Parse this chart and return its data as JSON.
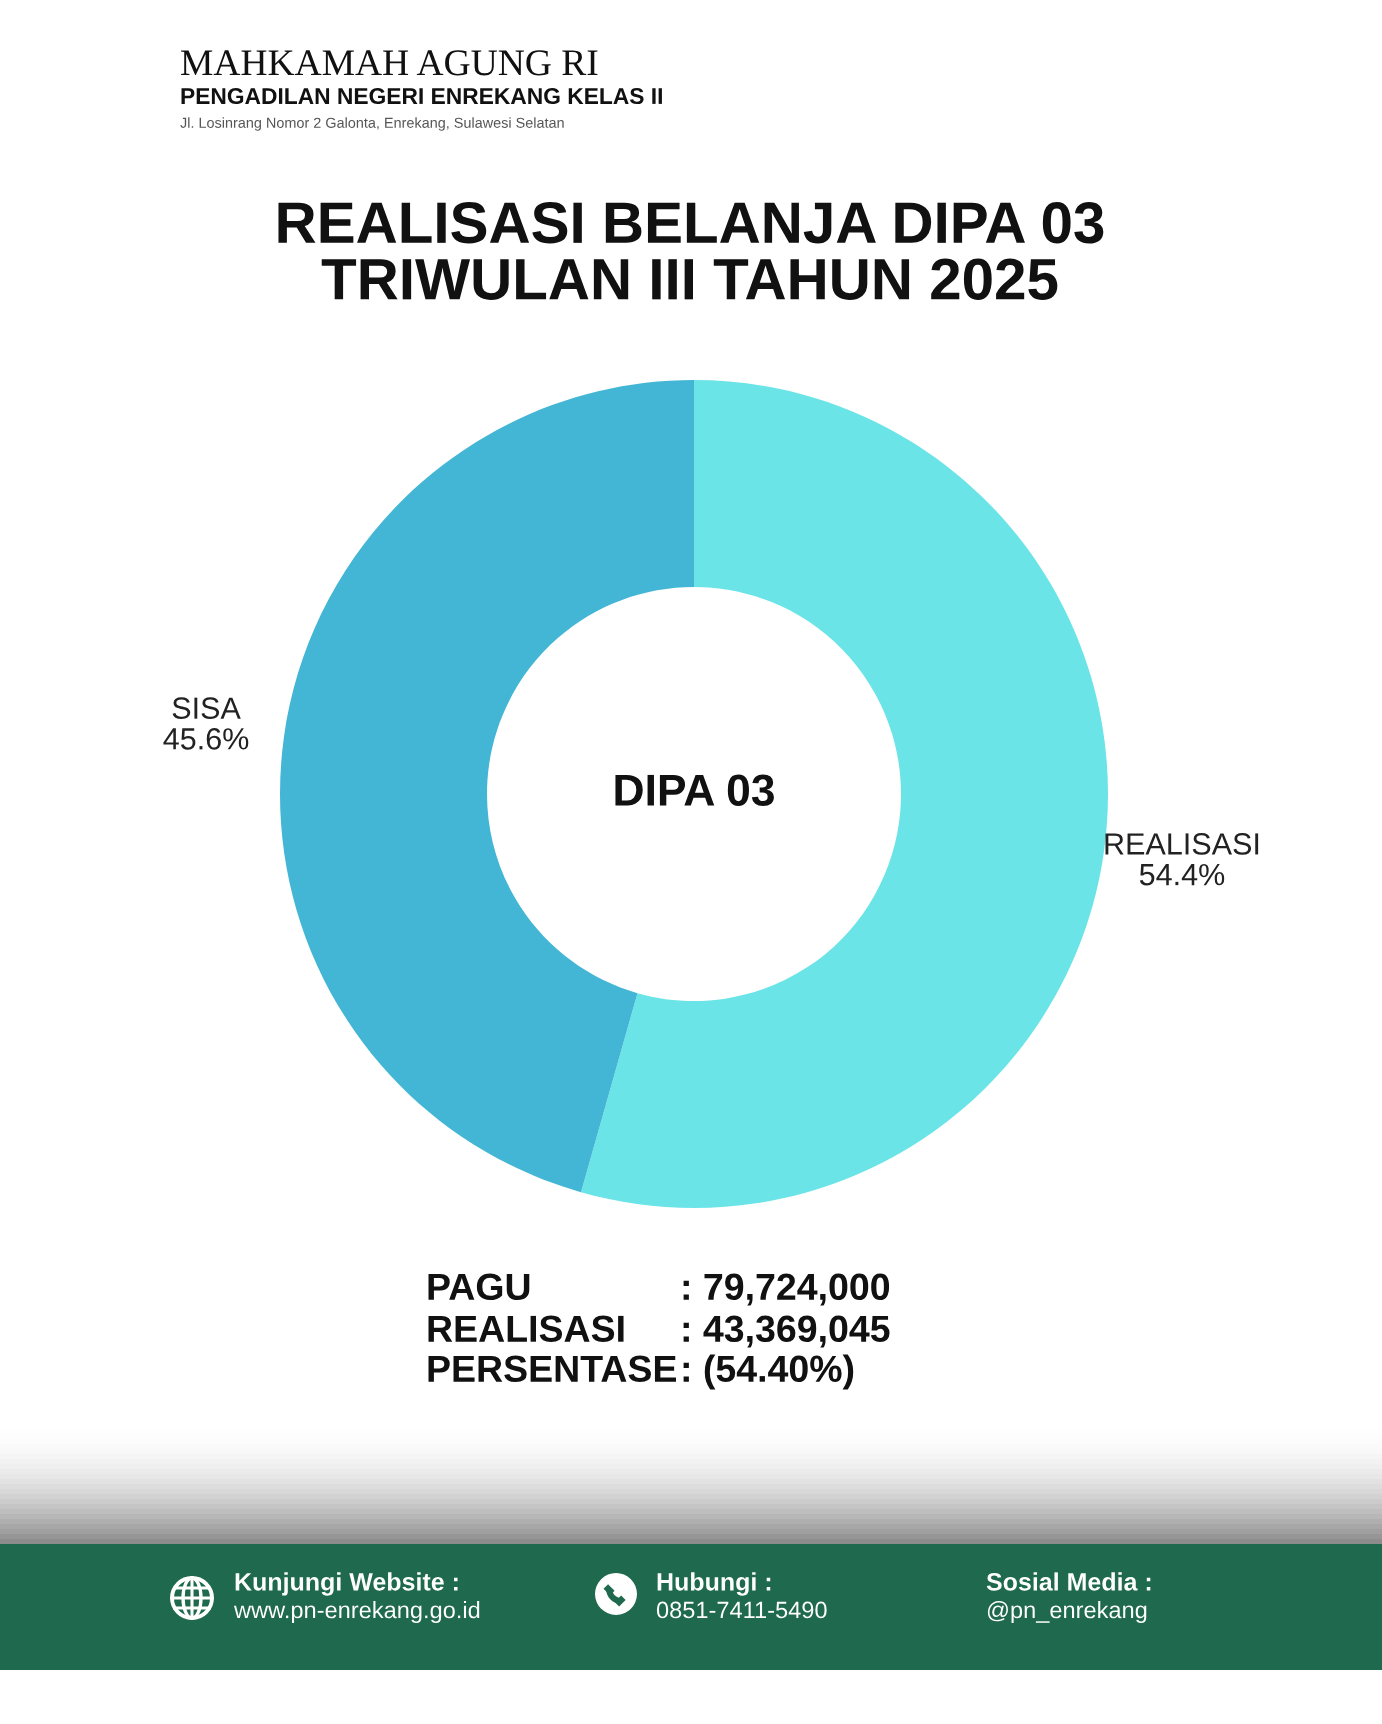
{
  "chart_data": {
    "type": "donut",
    "title": "REALISASI BELANJA DIPA 03\nTRIWULAN III TAHUN 2025",
    "categories": [
      "REALISASI",
      "SISA"
    ],
    "values": [
      54.4,
      45.6
    ],
    "colors": [
      "#6be4e8",
      "#43b6d5"
    ],
    "value_labels": [
      "54.4%",
      "45.6%"
    ],
    "annotations": [
      "MAHKAMAH AGUNG RI",
      "PENGADILAN NEGERI ENREKANG KELAS II",
      "Jl. Losinrang Nomor 2 Galonta, Enrekang, Sulawesi Selatan",
      "DIPA 03",
      "PAGU",
      ": 79,724,000",
      "REALISASI",
      ": 43,369,045",
      "PERSENTASE",
      ": (54.40%)",
      "Kunjungi Website :",
      "www.pn-enrekang.go.id",
      "Hubungi :",
      "0851-7411-5490",
      "Sosial Media :",
      "@pn_enrekang"
    ]
  }
}
